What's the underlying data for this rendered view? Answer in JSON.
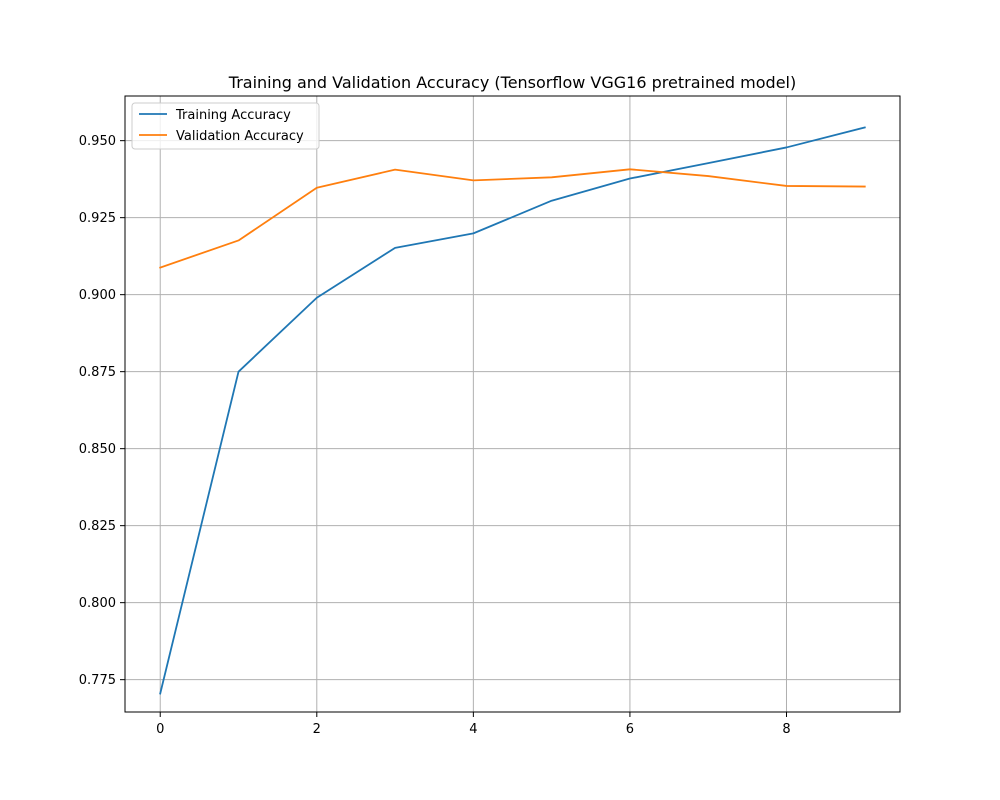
{
  "chart_data": {
    "type": "line",
    "title": "Training and Validation Accuracy (Tensorflow VGG16 pretrained model)",
    "xlabel": "",
    "ylabel": "",
    "x": [
      0,
      1,
      2,
      3,
      4,
      5,
      6,
      7,
      8,
      9
    ],
    "xlim": [
      -0.45,
      9.45
    ],
    "ylim": [
      0.7645,
      0.9645
    ],
    "xticks": [
      0,
      2,
      4,
      6,
      8
    ],
    "xtick_labels": [
      "0",
      "2",
      "4",
      "6",
      "8"
    ],
    "yticks": [
      0.775,
      0.8,
      0.825,
      0.85,
      0.875,
      0.9,
      0.925,
      0.95
    ],
    "ytick_labels": [
      "0.775",
      "0.800",
      "0.825",
      "0.850",
      "0.875",
      "0.900",
      "0.925",
      "0.950"
    ],
    "grid": true,
    "legend_position": "top-left",
    "series": [
      {
        "name": "Training Accuracy",
        "color": "#1f77b4",
        "values": [
          0.7705,
          0.875,
          0.899,
          0.9152,
          0.9199,
          0.9305,
          0.9377,
          0.9427,
          0.9478,
          0.9543
        ]
      },
      {
        "name": "Validation Accuracy",
        "color": "#ff7f0e",
        "values": [
          0.9088,
          0.9176,
          0.9347,
          0.9406,
          0.9371,
          0.9381,
          0.9407,
          0.9385,
          0.9353,
          0.9351
        ]
      }
    ]
  }
}
